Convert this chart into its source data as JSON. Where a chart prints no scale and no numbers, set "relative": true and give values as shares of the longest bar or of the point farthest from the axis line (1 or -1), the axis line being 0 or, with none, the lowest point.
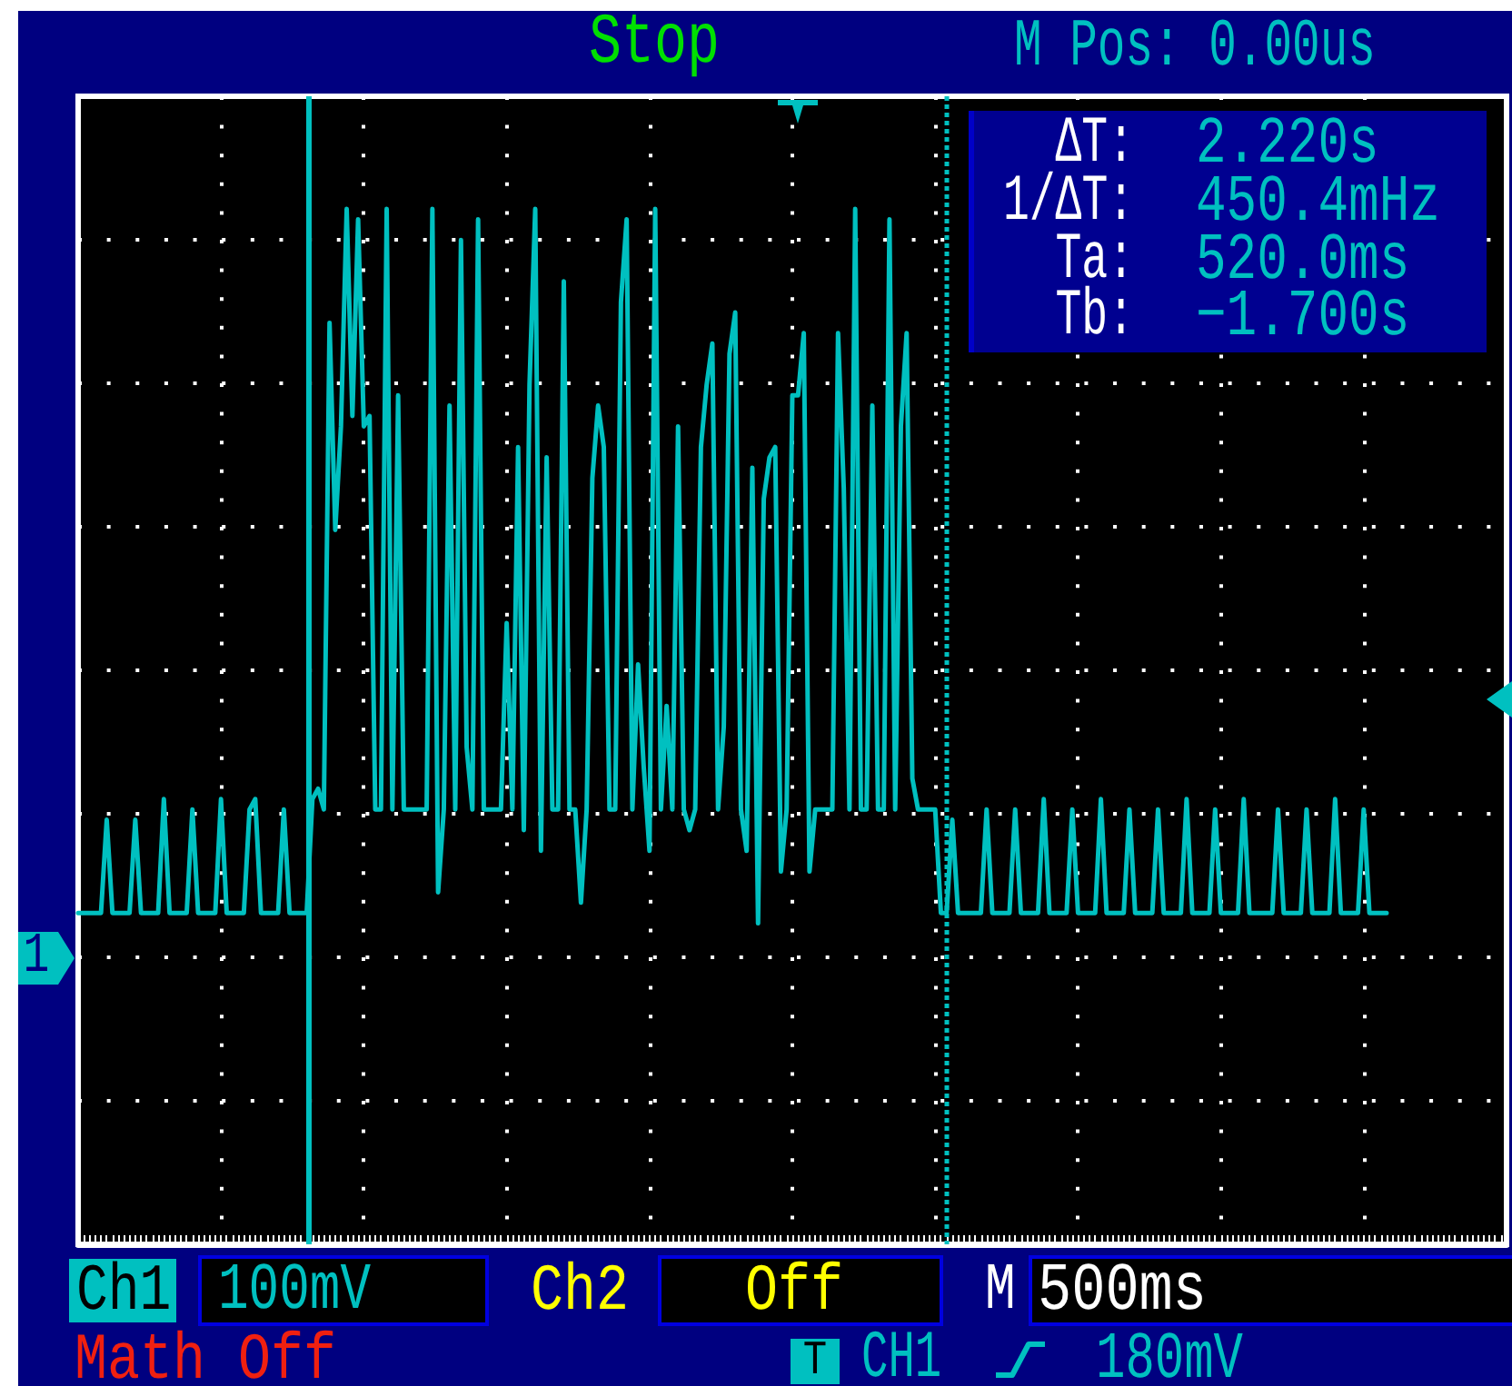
{
  "chart_data": {
    "type": "line",
    "relative": true,
    "annotations": [
      "Stop",
      "M Pos: 0.00us",
      "ΔT:",
      "2.220s",
      "1/ΔT:",
      "450.4mHz",
      "Ta:",
      "520.0ms",
      "Tb:",
      "−1.700s",
      "Ch1",
      "100mV",
      "Ch2",
      "Off",
      "M",
      "500ms",
      "Math Off",
      "T",
      "CH1",
      "180mV",
      "1"
    ],
    "categories": [
      null,
      null,
      null,
      null,
      null,
      null,
      null,
      null,
      null,
      null,
      null,
      null,
      null,
      null,
      null,
      null,
      null,
      null,
      null,
      null,
      null,
      null,
      null,
      null,
      null,
      null,
      null,
      null,
      null,
      null,
      null,
      null,
      null,
      null,
      null,
      null,
      null,
      null,
      null,
      null,
      null,
      null,
      null,
      null,
      null,
      null,
      null,
      null,
      null,
      null,
      null,
      null,
      null,
      null,
      null,
      null,
      null,
      null,
      null,
      null,
      null,
      null,
      null,
      null,
      null,
      null,
      null,
      null,
      null,
      null,
      null,
      null,
      null,
      null,
      null,
      null,
      null,
      null,
      null,
      null,
      null,
      null,
      null,
      null,
      null,
      null,
      null,
      null,
      null,
      null,
      null,
      null,
      null,
      null,
      null,
      null,
      null,
      null,
      null,
      null,
      null,
      null,
      null,
      null,
      null,
      null,
      null,
      null,
      null,
      null,
      null,
      null,
      null,
      null,
      null,
      null,
      null,
      null,
      null,
      null,
      null,
      null,
      null,
      null,
      null,
      null,
      null,
      null,
      null,
      null,
      null,
      null,
      null,
      null,
      null,
      null,
      null,
      null,
      null,
      null,
      null,
      null,
      null,
      null,
      null,
      null,
      null,
      null,
      null,
      null,
      null,
      null,
      null,
      null,
      null,
      null,
      null,
      null,
      null,
      null,
      null,
      null,
      null,
      null,
      null,
      null,
      null,
      null,
      null,
      null,
      null,
      null,
      null,
      null,
      null,
      null,
      null,
      null,
      null,
      null,
      null,
      null,
      null,
      null,
      null,
      null,
      null,
      null,
      null,
      null,
      null,
      null,
      null,
      null,
      null,
      null,
      null,
      null,
      null,
      null,
      null,
      null,
      null,
      null,
      null,
      null,
      null,
      null,
      null,
      null,
      null,
      null,
      null,
      null,
      null,
      null,
      null,
      null,
      null,
      null,
      null,
      null,
      null,
      null,
      null,
      null,
      null,
      null,
      null,
      null,
      null,
      null,
      null,
      null,
      null,
      null,
      null,
      null,
      null,
      null,
      null,
      null,
      null,
      null,
      null,
      null,
      null,
      null,
      null,
      null,
      null
    ],
    "series": [
      {
        "color": "#00c0c0",
        "values": [
          0.32,
          0.32,
          0.32,
          0.32,
          0.32,
          0.41,
          0.32,
          0.32,
          0.32,
          0.32,
          0.41,
          0.32,
          0.32,
          0.32,
          0.32,
          0.43,
          0.32,
          0.32,
          0.32,
          0.32,
          0.42,
          0.32,
          0.32,
          0.32,
          0.32,
          0.43,
          0.32,
          0.32,
          0.32,
          0.32,
          0.42,
          0.43,
          0.32,
          0.32,
          0.32,
          0.32,
          0.42,
          0.32,
          0.32,
          0.32,
          0.32,
          0.43,
          0.44,
          0.42,
          0.89,
          0.69,
          0.79,
          1,
          0.8,
          0.99,
          0.79,
          0.8,
          0.42,
          0.42,
          1,
          0.42,
          0.82,
          0.42,
          0.42,
          0.42,
          0.42,
          0.42,
          1,
          0.34,
          0.42,
          0.81,
          0.42,
          0.97,
          0.48,
          0.42,
          0.99,
          0.42,
          0.42,
          0.42,
          0.42,
          0.6,
          0.42,
          0.77,
          0.4,
          0.83,
          1,
          0.38,
          0.76,
          0.42,
          0.42,
          0.93,
          0.42,
          0.42,
          0.33,
          0.42,
          0.74,
          0.81,
          0.77,
          0.42,
          0.42,
          0.91,
          0.99,
          0.42,
          0.56,
          0.46,
          0.38,
          1,
          0.42,
          0.52,
          0.42,
          0.79,
          0.42,
          0.4,
          0.42,
          0.77,
          0.83,
          0.87,
          0.42,
          0.5,
          0.86,
          0.9,
          0.42,
          0.38,
          0.75,
          0.31,
          0.72,
          0.76,
          0.77,
          0.36,
          0.42,
          0.82,
          0.82,
          0.88,
          0.36,
          0.42,
          0.42,
          0.42,
          0.42,
          0.88,
          0.73,
          0.42,
          1,
          0.42,
          0.42,
          0.81,
          0.42,
          0.42,
          0.99,
          0.42,
          0.79,
          0.88,
          0.45,
          0.42,
          0.42,
          0.42,
          0.42,
          0.32,
          0.32,
          0.41,
          0.32,
          0.32,
          0.32,
          0.32,
          0.32,
          0.42,
          0.32,
          0.32,
          0.32,
          0.32,
          0.42,
          0.32,
          0.32,
          0.32,
          0.32,
          0.43,
          0.32,
          0.32,
          0.32,
          0.32,
          0.42,
          0.32,
          0.32,
          0.32,
          0.32,
          0.43,
          0.32,
          0.32,
          0.32,
          0.32,
          0.42,
          0.32,
          0.32,
          0.32,
          0.32,
          0.42,
          0.32,
          0.32,
          0.32,
          0.32,
          0.43,
          0.32,
          0.32,
          0.32,
          0.32,
          0.42,
          0.32,
          0.32,
          0.32,
          0.32,
          0.43,
          0.32,
          0.32,
          0.32,
          0.32,
          0.32,
          0.42,
          0.32,
          0.32,
          0.32,
          0.32,
          0.42,
          0.32,
          0.32,
          0.32,
          0.32,
          0.43,
          0.32,
          0.32,
          0.32,
          0.32,
          0.42,
          0.32,
          0.32,
          0.32,
          0.32,
          null,
          null,
          null,
          null,
          null,
          null,
          null,
          null,
          null,
          null,
          null,
          null,
          null,
          null,
          null,
          null,
          null,
          null,
          null,
          null,
          null
        ]
      }
    ],
    "grid": true,
    "marker": "none",
    "line_style": "solid"
  }
}
